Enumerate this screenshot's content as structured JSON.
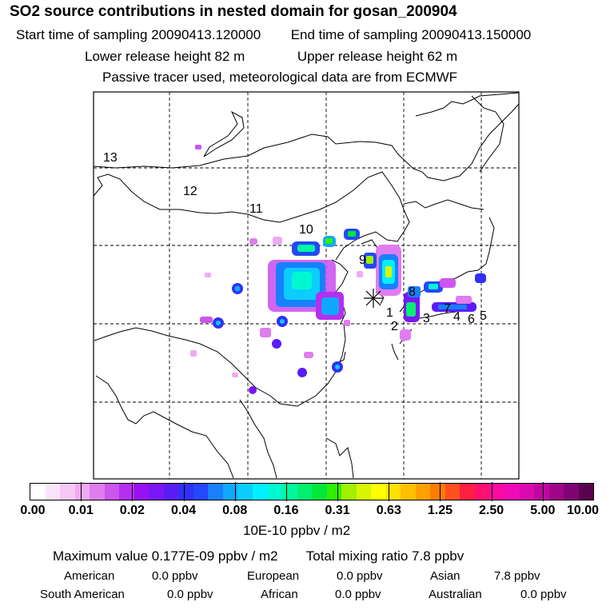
{
  "header": {
    "title": "SO2 source contributions in nested domain for gosan_200904",
    "start_label": "Start time of sampling 20090413.120000",
    "end_label": "End time of sampling 20090413.150000",
    "lower_label": "Lower release height   82 m",
    "upper_label": "Upper release height   62 m",
    "note": "Passive tracer used, meteorological data are from ECMWF"
  },
  "map": {
    "region_labels": [
      "1",
      "2",
      "3",
      "4",
      "5",
      "6",
      "7",
      "8",
      "9",
      "10",
      "11",
      "12",
      "13"
    ],
    "receptor_marker": "asterisk-receptor"
  },
  "colorbar": {
    "units": "10E-10 ppbv / m2",
    "tick_labels": [
      "0.00",
      "0.01",
      "0.02",
      "0.04",
      "0.08",
      "0.16",
      "0.31",
      "0.63",
      "1.25",
      "2.50",
      "5.00",
      "10.00"
    ],
    "colors": [
      "#ffffff",
      "#fbe4fb",
      "#f5c8f6",
      "#eeaaf2",
      "#e07cf0",
      "#cc55ee",
      "#b52ff0",
      "#9a10f4",
      "#7a16f5",
      "#5a1cf6",
      "#3030f8",
      "#2448fa",
      "#1880fb",
      "#10a8fc",
      "#0ccdfd",
      "#00f0ff",
      "#00f8d0",
      "#00f8a0",
      "#00f070",
      "#00e838",
      "#30f000",
      "#a0f000",
      "#d8f400",
      "#ffff00",
      "#ffe000",
      "#ffc000",
      "#ffa000",
      "#ff7c00",
      "#ff5020",
      "#ff2040",
      "#ff1070",
      "#ff0aa0",
      "#f00ab8",
      "#dc08b0",
      "#c006a0",
      "#a0068a",
      "#800474",
      "#5a0250"
    ]
  },
  "stats": {
    "max_label": "Maximum value  0.177E-09 ppbv / m2",
    "total_label": "Total mixing ratio       7.8 ppbv",
    "american_label": "American",
    "american_value": "0.0 ppbv",
    "european_label": "European",
    "european_value": "0.0 ppbv",
    "asian_label": "Asian",
    "asian_value": "7.8 ppbv",
    "south_american_label": "South American",
    "south_american_value": "0.0 ppbv",
    "african_label": "African",
    "african_value": "0.0 ppbv",
    "australian_label": "Australian",
    "australian_value": "0.0 ppbv"
  }
}
